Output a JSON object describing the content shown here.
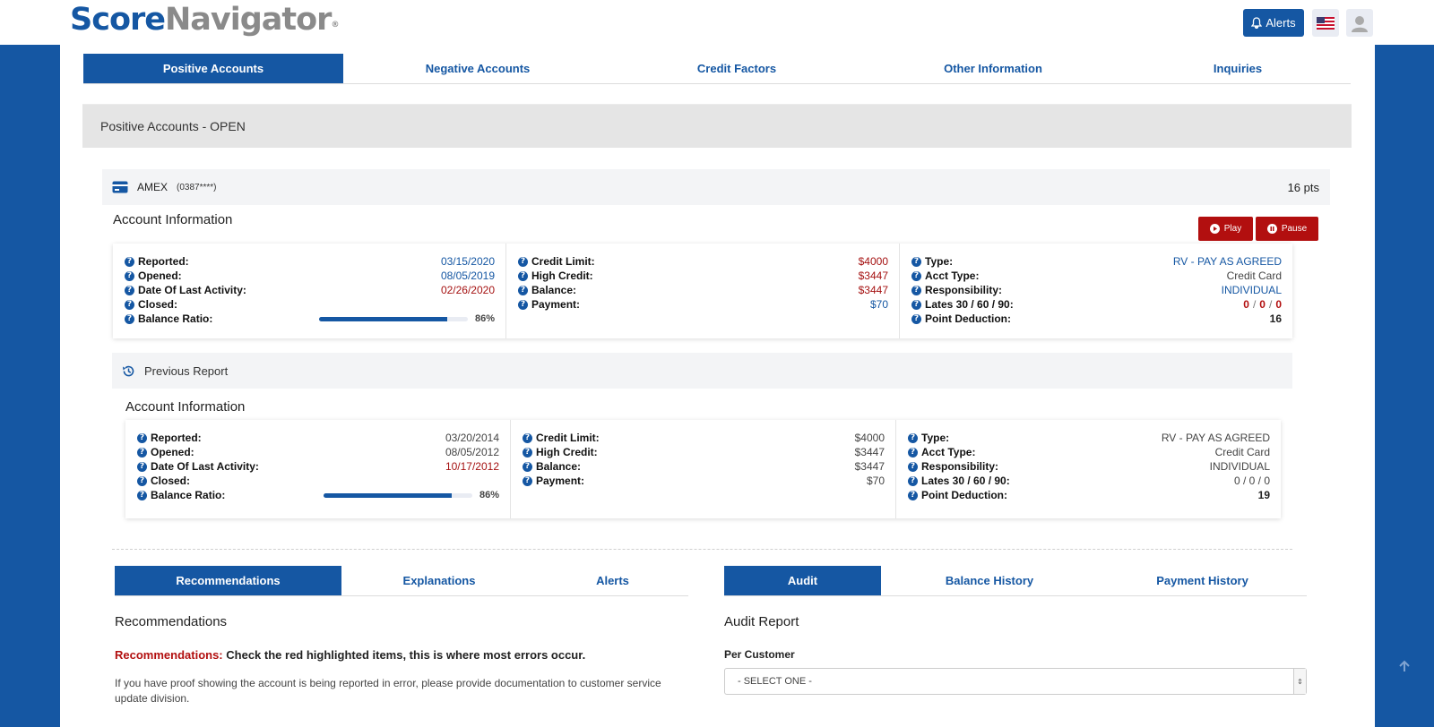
{
  "brand": {
    "part1": "Score",
    "part2": "Navigator",
    "reg": "®"
  },
  "header": {
    "alerts_label": "Alerts"
  },
  "main_tabs": [
    "Positive Accounts",
    "Negative Accounts",
    "Credit Factors",
    "Other Information",
    "Inquiries"
  ],
  "section_title": "Positive Accounts - OPEN",
  "account": {
    "name": "AMEX",
    "number": "(0387****)",
    "points": "16 pts"
  },
  "account_info_title": "Account Information",
  "buttons": {
    "play": "Play",
    "pause": "Pause"
  },
  "current": {
    "reported": "03/15/2020",
    "opened": "08/05/2019",
    "last_activity": "02/26/2020",
    "closed": "",
    "balance_ratio_pct": 86,
    "balance_ratio_label": "86%",
    "credit_limit": "$4000",
    "high_credit": "$3447",
    "balance": "$3447",
    "payment": "$70",
    "type": "RV - PAY AS AGREED",
    "acct_type": "Credit Card",
    "responsibility": "INDIVIDUAL",
    "lates": [
      "0",
      "0",
      "0"
    ],
    "point_deduction": "16"
  },
  "previous_report_label": "Previous Report",
  "previous": {
    "reported": "03/20/2014",
    "opened": "08/05/2012",
    "last_activity": "10/17/2012",
    "closed": "",
    "balance_ratio_pct": 86,
    "balance_ratio_label": "86%",
    "credit_limit": "$4000",
    "high_credit": "$3447",
    "balance": "$3447",
    "payment": "$70",
    "type": "RV - PAY AS AGREED",
    "acct_type": "Credit Card",
    "responsibility": "INDIVIDUAL",
    "lates_text": "0 / 0 / 0",
    "point_deduction": "19"
  },
  "labels": {
    "reported": "Reported:",
    "opened": "Opened:",
    "last_activity": "Date Of Last Activity:",
    "closed": "Closed:",
    "balance_ratio": "Balance Ratio:",
    "credit_limit": "Credit Limit:",
    "high_credit": "High Credit:",
    "balance": "Balance:",
    "payment": "Payment:",
    "type": "Type:",
    "acct_type": "Acct Type:",
    "responsibility": "Responsibility:",
    "lates": "Lates 30 / 60 / 90:",
    "point_deduction": "Point Deduction:"
  },
  "left_tabs": [
    "Recommendations",
    "Explanations",
    "Alerts"
  ],
  "right_tabs": [
    "Audit",
    "Balance History",
    "Payment History"
  ],
  "recommendations": {
    "title": "Recommendations",
    "lead_label": "Recommendations:",
    "lead_text": "Check the red highlighted items, this is where most errors occur.",
    "body": "If you have proof showing the account is being reported in error, please provide documentation to customer service update division."
  },
  "audit": {
    "title": "Audit Report",
    "per_customer_label": "Per Customer",
    "select_value": "- SELECT ONE -"
  },
  "colors": {
    "brand_blue": "#1557a3",
    "alert_red": "#b20f0f",
    "gray_text": "#8a8a8a"
  }
}
